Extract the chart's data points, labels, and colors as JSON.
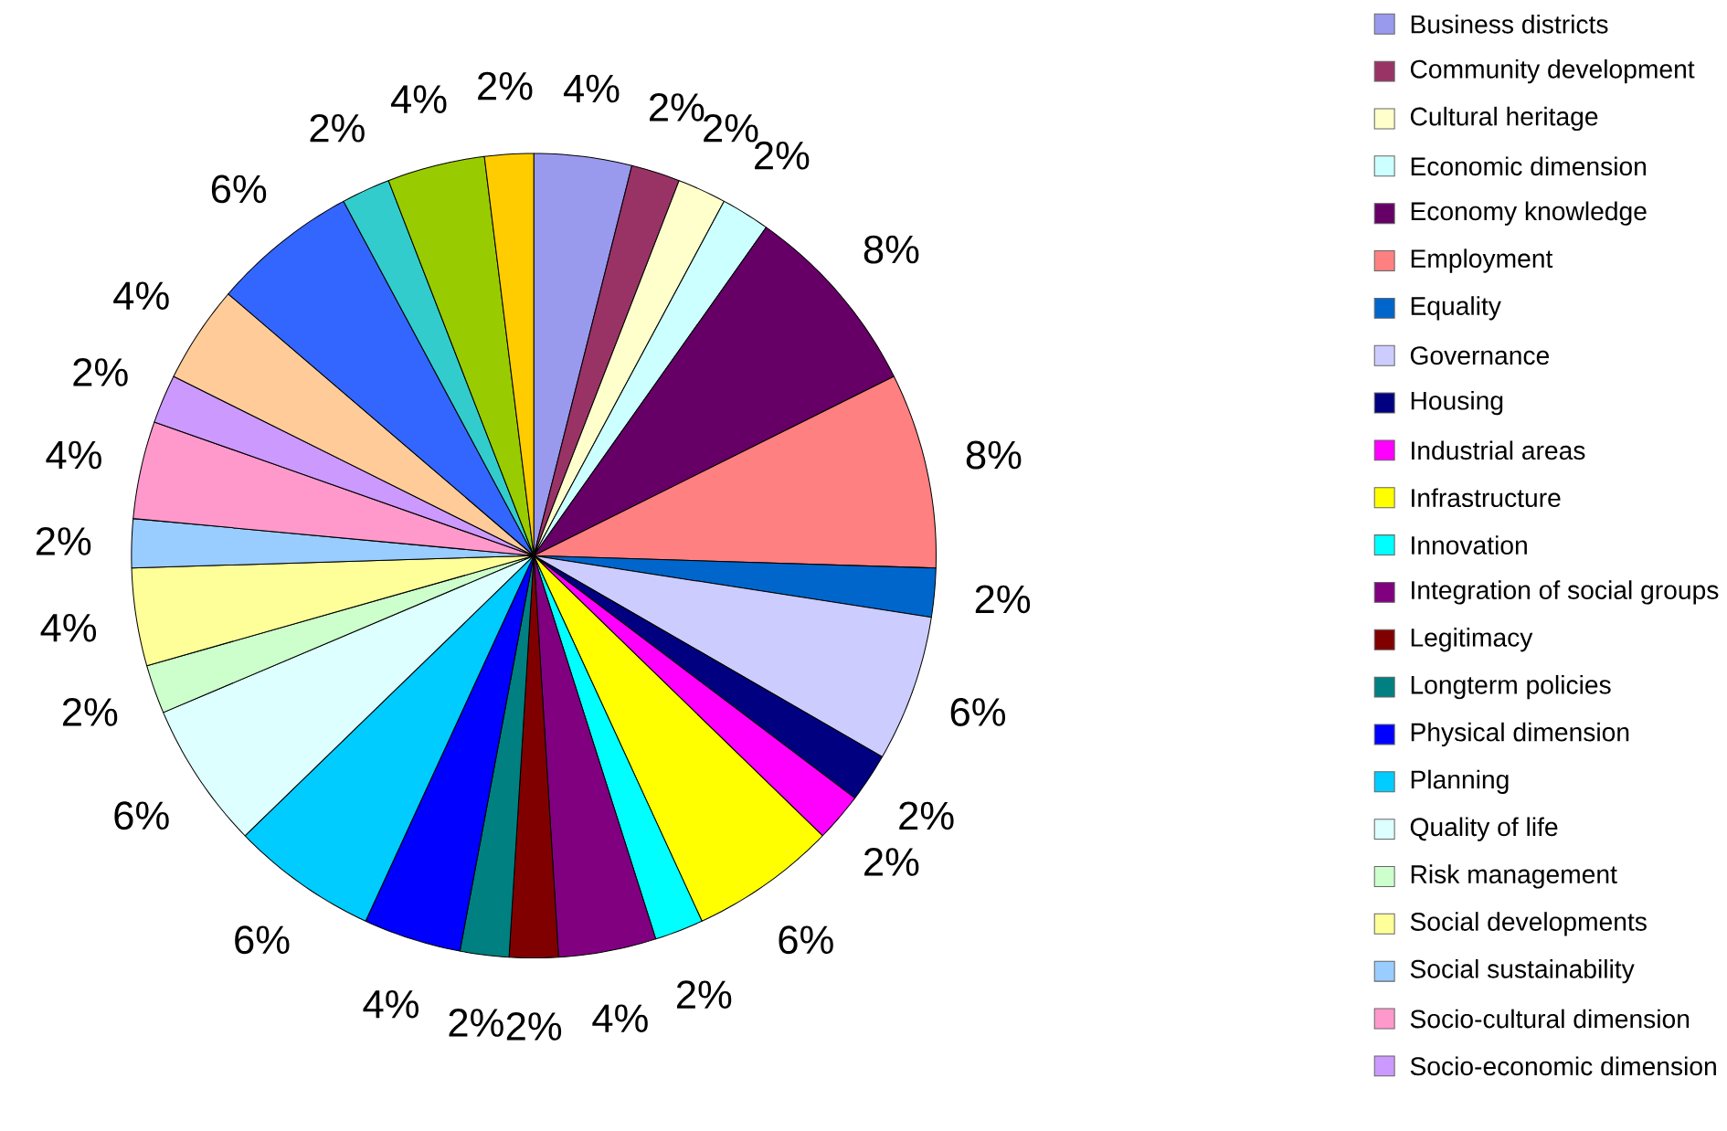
{
  "chart_data": {
    "type": "pie",
    "categories": [
      "Business districts",
      "Community development",
      "Cultural heritage",
      "Economic dimension",
      "Economy knowledge",
      "Employment",
      "Equality",
      "Governance",
      "Housing",
      "Industrial areas",
      "Infrastructure",
      "Innovation",
      "Integration of social groups",
      "Legitimacy",
      "Longterm policies",
      "Physical dimension",
      "Planning",
      "Quality of life",
      "Risk management",
      "Social developments",
      "Social sustainability",
      "Socio-cultural dimension",
      "Socio-economic dimension",
      null,
      null,
      null,
      null,
      null
    ],
    "values": [
      4,
      2,
      2,
      2,
      8,
      8,
      2,
      6,
      2,
      2,
      6,
      2,
      4,
      2,
      2,
      4,
      6,
      6,
      2,
      4,
      2,
      4,
      2,
      4,
      6,
      2,
      4,
      2
    ],
    "value_labels": [
      "4%",
      "2%",
      "2%",
      "2%",
      "8%",
      "8%",
      "2%",
      "6%",
      "2%",
      "2%",
      "6%",
      "2%",
      "4%",
      "2%",
      "2%",
      "4%",
      "6%",
      "6%",
      "2%",
      "4%",
      "2%",
      "4%",
      "2%",
      "4%",
      "6%",
      "2%",
      "4%",
      "2%"
    ],
    "colors": [
      "#9999ee",
      "#993366",
      "#ffffcc",
      "#ccffff",
      "#660066",
      "#ff8080",
      "#0066cc",
      "#ccccff",
      "#000080",
      "#ff00ff",
      "#ffff00",
      "#00ffff",
      "#800080",
      "#800000",
      "#008080",
      "#0000ff",
      "#00ccff",
      "#ddffff",
      "#ccffcc",
      "#ffff99",
      "#99ccff",
      "#ff99cc",
      "#cc99ff",
      "#ffcc99",
      "#3366ff",
      "#33cccc",
      "#99cc00",
      "#ffcc00"
    ],
    "legend": "right"
  }
}
